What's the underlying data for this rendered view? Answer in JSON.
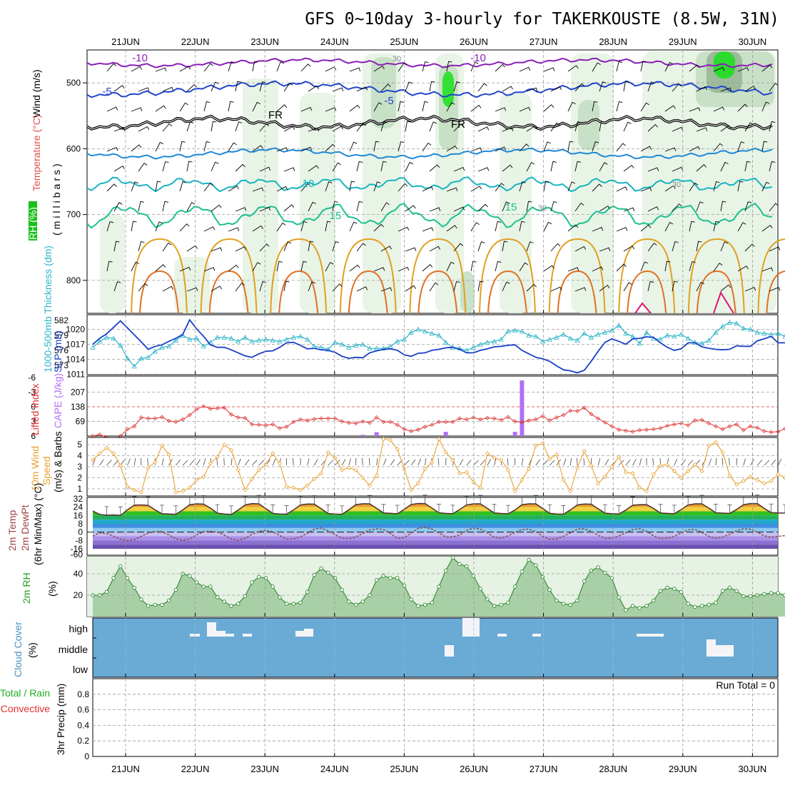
{
  "title": "GFS 0~10day 3-hourly for TAKERKOUSTE (8.5W, 31N)",
  "days": [
    "21JUN",
    "22JUN",
    "23JUN",
    "24JUN",
    "25JUN",
    "26JUN",
    "27JUN",
    "28JUN",
    "29JUN",
    "30JUN"
  ],
  "run_total": "Run Total = 0",
  "colors": {
    "temp_m10": "#8a1fb8",
    "temp_m5": "#2244cc",
    "temp_0": "#000000",
    "temp_5": "#1e88d8",
    "temp_10": "#18b4c0",
    "temp_15": "#1cc090",
    "temp_20": "#e0a020",
    "temp_25": "#e07020",
    "temp_30": "#e01870",
    "rh_light": "#e4f2e2",
    "rh_mid": "#c2dcc0",
    "rh_dark": "#95b493",
    "rh_max": "#18e018",
    "slp": "#1a3ec8",
    "thickness": "#2cb4c8",
    "lifted": "#e03030",
    "cape": "#b070f0",
    "wind10": "#e8a030",
    "cloud": "#6aabd6"
  },
  "upper_panel": {
    "ylabel_wind": "Wind (m/s)",
    "ylabel_temp": "Temperature (°C)",
    "ylabel_rh": "RH (%)",
    "ylabel_axis": "(millibars)",
    "yticks": [
      "500",
      "600",
      "700",
      "800"
    ],
    "contour_labels": [
      "-10",
      "-10",
      "-5",
      "-5",
      "FR",
      "FR",
      "10",
      "15",
      "15",
      "30",
      "30",
      "30"
    ]
  },
  "slp_panel": {
    "ylabel_thick": "1000-500mb Thickness (dm)",
    "ylabel_slp": "SLP (mb)",
    "left_ticks": [
      "582",
      "579",
      "576",
      "573"
    ],
    "right_ticks": [
      "1020",
      "1017",
      "1014",
      "1011"
    ]
  },
  "li_panel": {
    "ylabel_li": "Lifted Index",
    "ylabel_cape": "CAPE (J/kg)",
    "left_ticks": [
      "-6",
      "-3",
      "0",
      "3",
      "6"
    ],
    "right_ticks": [
      "207",
      "138",
      "69"
    ]
  },
  "wind_panel": {
    "ylabel_10m": "10m Wind",
    "ylabel_speed": "Speed",
    "ylabel_units": "(m/s) & Barbs",
    "yticks": [
      "5",
      "4",
      "3",
      "2",
      "1"
    ]
  },
  "temp_panel": {
    "ylabel_1": "2m Temp",
    "ylabel_2": "2m DewPt",
    "ylabel_3": "(6hr Min/Max) (°C)",
    "yticks": [
      "32",
      "24",
      "16",
      "8",
      "0",
      "-8",
      "-16",
      "-60"
    ]
  },
  "rh_panel": {
    "ylabel": "2m RH",
    "ylabel_units": "(%)",
    "yticks": [
      "40",
      "20"
    ]
  },
  "cloud_panel": {
    "ylabel": "Cloud Cover",
    "ylabel_units": "(%)",
    "levels": [
      "high",
      "middle",
      "low"
    ]
  },
  "precip_panel": {
    "ylabel_1": "Total / Rain",
    "ylabel_2": "Convective",
    "ylabel_3": "3hr Precip (mm)",
    "yticks": [
      "0.8",
      "0.6",
      "0.4",
      "0.2",
      "0"
    ]
  },
  "chart_data": [
    {
      "type": "line",
      "panel": "upper-air cross section",
      "title": "Temperature isotherms (°C)",
      "ylabel": "millibars",
      "ylim": [
        850,
        450
      ],
      "x": "3-hourly, 20JUN 15Z to 30JUN 12Z",
      "series": [
        {
          "name": "-10",
          "values": [
            470,
            462
          ]
        },
        {
          "name": "-5",
          "values": [
            500,
            520
          ]
        },
        {
          "name": "FR",
          "values": [
            560,
            568
          ]
        },
        {
          "name": "10",
          "values": [
            650,
            650
          ]
        },
        {
          "name": "15",
          "values": [
            700,
            700
          ]
        }
      ]
    },
    {
      "type": "line",
      "panel": "SLP and thickness",
      "ylabel": "SLP (mb)",
      "ylim": [
        1010,
        1022
      ],
      "series": [
        {
          "name": "SLP (mb)",
          "values": [
            1017.0,
            1018.2,
            1019.1,
            1020.4,
            1021.7,
            1020.3,
            1018.9,
            1017.5,
            1016.0,
            1016.6,
            1016.9,
            1017.6,
            1018.2,
            1019.0,
            1021.9,
            1020.1,
            1018.6,
            1016.9,
            1016.4,
            1016.4,
            1015.9,
            1015.3,
            1014.7,
            1014.4,
            1015.1,
            1015.6,
            1015.7,
            1016.4,
            1017.3,
            1017.4,
            1016.8,
            1016.1,
            1016.2,
            1015.9,
            1015.8,
            1015.4,
            1014.6,
            1014.2,
            1014.4,
            1014.3,
            1015.3,
            1015.7,
            1016.0,
            1016.1,
            1015.8,
            1014.9,
            1014.6,
            1015.2,
            1015.3,
            1015.8,
            1016.0,
            1016.3,
            1016.4,
            1016.0,
            1015.3,
            1015.3,
            1015.8,
            1016.1,
            1016.5,
            1016.6,
            1016.8,
            1016.9,
            1015.8,
            1015.1,
            1014.4,
            1014.1,
            1013.6,
            1012.7,
            1011.9,
            1011.7,
            1011.3,
            1011.8,
            1013.6,
            1015.6,
            1017.4,
            1018.1,
            1017.6,
            1017.0,
            1018.1,
            1018.2,
            1018.5,
            1018.4,
            1017.3,
            1016.4,
            1015.8,
            1016.1,
            1017.3,
            1017.3,
            1016.5,
            1016.2,
            1016.0,
            1015.9,
            1016.0,
            1016.7,
            1016.6,
            1016.6,
            1017.7,
            1018.1,
            1018.6,
            1017.3,
            1017.3
          ]
        },
        {
          "name": "1000-500mb Thickness (dm)",
          "values": [
            576.6,
            577.8,
            578.6,
            578.4,
            577.0,
            574.4,
            572.8,
            574.4,
            574.6,
            575.8,
            576.6,
            576.8,
            578.0,
            579.0,
            578.2,
            578.4,
            576.8,
            577.6,
            578.6,
            578.6,
            578.4,
            577.8,
            578.6,
            577.8,
            578.0,
            578.2,
            578.0,
            577.8,
            578.2,
            578.6,
            578.8,
            578.2,
            576.8,
            576.6,
            576.2,
            577.6,
            577.2,
            576.6,
            577.0,
            577.2,
            576.4,
            576.4,
            576.4,
            576.8,
            577.8,
            578.2,
            579.6,
            580.2,
            579.8,
            579.4,
            579.0,
            577.6,
            576.6,
            576.4,
            576.0,
            576.6,
            577.2,
            577.6,
            577.8,
            578.2,
            579.8,
            580.0,
            579.8,
            579.0,
            578.8,
            577.8,
            578.2,
            578.6,
            579.2,
            578.4,
            578.0,
            579.4,
            578.6,
            579.2,
            579.6,
            580.0,
            581.0,
            579.4,
            578.8,
            577.4,
            579.6,
            578.4,
            578.2,
            579.0,
            578.8,
            579.2,
            578.4,
            577.6,
            577.4,
            578.0,
            579.6,
            580.8,
            581.6,
            581.4,
            580.4,
            580.2,
            579.6,
            579.4,
            579.2,
            579.4,
            578.8
          ]
        }
      ]
    },
    {
      "type": "bar",
      "panel": "Lifted index and CAPE",
      "ylabel": "CAPE (J/kg)",
      "ylim": [
        0,
        276
      ],
      "series": [
        {
          "name": "Lifted Index",
          "values": [
            6.0,
            5.7,
            6.3,
            6.8,
            6.0,
            4.6,
            4.0,
            2.2,
            2.4,
            2.4,
            2.1,
            2.9,
            3.1,
            2.6,
            1.7,
            0.5,
            -0.1,
            0.4,
            0.3,
            0.2,
            1.6,
            2.2,
            2.3,
            3.6,
            3.7,
            3.8,
            3.6,
            4.4,
            4.1,
            3.1,
            2.6,
            2.8,
            2.5,
            2.4,
            2.4,
            2.4,
            3.0,
            3.3,
            3.4,
            3.0,
            3.3,
            2.2,
            3.1,
            3.1,
            3.7,
            4.6,
            5.0,
            4.7,
            4.1,
            3.7,
            3.1,
            3.1,
            3.1,
            2.4,
            2.6,
            2.2,
            2.6,
            2.3,
            2.4,
            2.7,
            2.1,
            3.0,
            3.2,
            2.8,
            2.6,
            1.9,
            2.8,
            2.2,
            1.7,
            0.8,
            0.9,
            0.2,
            1.5,
            2.4,
            3.2,
            4.0,
            4.7,
            4.9,
            5.1,
            4.8,
            4.7,
            4.6,
            4.4,
            3.9,
            3.6,
            3.4,
            3.8,
            2.8,
            2.7,
            3.4,
            4.0,
            4.6,
            4.0,
            3.6,
            4.8,
            4.0,
            4.3,
            5.0,
            5.2,
            5.1,
            4.5
          ]
        },
        {
          "name": "CAPE (J/kg)",
          "values": [
            0,
            0,
            0,
            0,
            0,
            0,
            0,
            0,
            0,
            0,
            0,
            0,
            0,
            0,
            0,
            0,
            0,
            0,
            0,
            0,
            0,
            0,
            0,
            0,
            0,
            0,
            0,
            0,
            0,
            0,
            0,
            0,
            0,
            0,
            0,
            0,
            0,
            0,
            0,
            6,
            0,
            18,
            0,
            0,
            0,
            0,
            0,
            0,
            0,
            0,
            0,
            20,
            0,
            0,
            0,
            0,
            0,
            0,
            0,
            0,
            0,
            20,
            262,
            0,
            0,
            0,
            0,
            0,
            0,
            0,
            0,
            0,
            0,
            0,
            0,
            0,
            0,
            0,
            0,
            0,
            0,
            0,
            0,
            0,
            0,
            0,
            0,
            0,
            0,
            0,
            0,
            0,
            0,
            0,
            0,
            0,
            0,
            0,
            0,
            0,
            0
          ]
        }
      ]
    },
    {
      "type": "line",
      "panel": "10m wind speed",
      "ylabel": "m/s",
      "ylim": [
        0.5,
        5.5
      ],
      "series": [
        {
          "name": "10m Wind Speed",
          "values": [
            3.6,
            4.2,
            4.7,
            4.2,
            3.1,
            1.2,
            0.9,
            0.7,
            2.9,
            3.4,
            4.9,
            4.1,
            0.7,
            0.8,
            1.1,
            1.8,
            2.1,
            3.3,
            3.9,
            5.0,
            4.5,
            2.7,
            0.9,
            1.9,
            2.7,
            3.2,
            4.2,
            3.3,
            1.2,
            1.1,
            0.9,
            1.3,
            1.9,
            2.4,
            4.3,
            3.8,
            2.7,
            2.9,
            2.7,
            2.0,
            1.3,
            2.2,
            5.5,
            5.4,
            4.6,
            2.8,
            0.9,
            1.5,
            2.8,
            3.4,
            5.5,
            4.3,
            3.6,
            2.4,
            2.5,
            1.6,
            1.1,
            4.2,
            3.8,
            3.6,
            2.7,
            0.8,
            1.8,
            2.8,
            4.9,
            5.1,
            3.7,
            4.1,
            1.8,
            0.8,
            2.9,
            4.4,
            3.1,
            1.5,
            2.1,
            3.0,
            3.9,
            2.5,
            2.4,
            1.1,
            0.8,
            2.3,
            3.1,
            3.2,
            2.6,
            2.0,
            2.6,
            3.2,
            2.6,
            4.9,
            5.2,
            4.3,
            2.2,
            1.4,
            1.7,
            2.1,
            1.8,
            1.5,
            1.7,
            2.3,
            2.0
          ]
        }
      ]
    },
    {
      "type": "area",
      "panel": "2m temperature and dewpoint",
      "ylabel": "°C",
      "ylim": [
        -16,
        32
      ],
      "series": [
        {
          "name": "2m Temp",
          "values": [
            20.3,
            17.0,
            16.3,
            16.5,
            16.1,
            21.4,
            25.9,
            26.2,
            25.7,
            21.4,
            17.7,
            17.4,
            17.1,
            21.3,
            26.3,
            27.1,
            26.9,
            23.1,
            18.2,
            17.4,
            17.0,
            21.2,
            26.1,
            27.4,
            27.2,
            22.6,
            18.0,
            17.4,
            17.2,
            21.4,
            26.1,
            27.0,
            26.9,
            22.5,
            17.8,
            17.3,
            17.1,
            21.5,
            26.4,
            27.3,
            27.1,
            22.9,
            18.4,
            18.1,
            17.6,
            21.9,
            26.5,
            27.5,
            27.4,
            23.1,
            18.6,
            18.0,
            17.7,
            21.7,
            26.1,
            27.1,
            27.2,
            22.8,
            18.4,
            17.9,
            17.5,
            21.3,
            26.3,
            27.2,
            27.1,
            22.7,
            18.1,
            17.4,
            17.2,
            21.3,
            26.2,
            27.0,
            26.8,
            22.5,
            18.2,
            17.7,
            17.4,
            21.2,
            25.8,
            26.4,
            26.4,
            22.8,
            18.4,
            18.0,
            17.7,
            21.7,
            26.1,
            27.1,
            27.2,
            23.0,
            18.6,
            18.3,
            18.0,
            21.7,
            26.3,
            27.4,
            27.4,
            22.8,
            18.8,
            18.4,
            18.3
          ]
        },
        {
          "name": "2m DewPt",
          "values": [
            -3.8,
            -0.8,
            -1.3,
            -3.9,
            -6.9,
            -8.2,
            -7.3,
            -3.9,
            -0.9,
            0.6,
            0.4,
            -2.6,
            -6.4,
            -7.9,
            -6.6,
            -2.6,
            0.3,
            0.9,
            0.1,
            -2.9,
            -6.7,
            -7.8,
            -5.9,
            -2.0,
            0.7,
            1.6,
            0.3,
            -3.2,
            -6.8,
            -6.5,
            -4.5,
            -1.2,
            3.0,
            3.8,
            1.2,
            -2.4,
            -5.8,
            -6.2,
            -4.5,
            -1.4,
            2.1,
            3.1,
            2.5,
            -1.3,
            -6.0,
            -5.4,
            -1.0,
            3.6,
            4.6,
            2.9,
            -0.8,
            -4.6,
            -4.6,
            -2.9,
            1.7,
            3.8,
            2.9,
            -0.5,
            -5.0,
            -5.6,
            -3.6,
            -0.3,
            2.5,
            2.9,
            0.5,
            -3.9,
            -6.9,
            -6.5,
            -3.9,
            -0.7,
            2.9,
            3.1,
            0.9,
            -3.0,
            -6.1,
            -5.8,
            -3.7,
            -0.5,
            2.6,
            3.2,
            0.8,
            -3.6,
            -6.2,
            -5.9,
            -4.0,
            -1.0,
            2.2,
            2.6,
            -0.3,
            -4.0,
            -5.9,
            -4.7,
            -2.2,
            1.2,
            3.3,
            2.8,
            -0.1,
            -3.6,
            -4.9,
            -4.1,
            -3.3
          ]
        }
      ]
    },
    {
      "type": "area",
      "panel": "2m relative humidity",
      "ylabel": "%",
      "ylim": [
        0,
        56
      ],
      "series": [
        {
          "name": "2m RH",
          "values": [
            20,
            20,
            23,
            36,
            47,
            36,
            27,
            16,
            10,
            11,
            11,
            15,
            25,
            40,
            38,
            32,
            28,
            28,
            18,
            14,
            10,
            12,
            19,
            32,
            37,
            36,
            28,
            18,
            12,
            12,
            13,
            23,
            39,
            45,
            41,
            36,
            25,
            14,
            11,
            14,
            20,
            34,
            38,
            36,
            36,
            29,
            16,
            10,
            11,
            13,
            28,
            43,
            55,
            49,
            47,
            38,
            26,
            16,
            10,
            11,
            13,
            28,
            42,
            53,
            48,
            37,
            25,
            15,
            12,
            11,
            15,
            33,
            43,
            46,
            41,
            36,
            18,
            6,
            10,
            8,
            10,
            15,
            24,
            27,
            26,
            23,
            12,
            9,
            10,
            11,
            13,
            24,
            27,
            24,
            19,
            19,
            20,
            21,
            22,
            22,
            20
          ]
        }
      ]
    },
    {
      "type": "heatmap",
      "panel": "cloud cover",
      "ylabel": "%",
      "levels": [
        "high",
        "middle",
        "low"
      ]
    },
    {
      "type": "bar",
      "panel": "3hr precipitation",
      "ylabel": "mm",
      "ylim": [
        0,
        1
      ],
      "series": [
        {
          "name": "Total / Rain",
          "values": [
            0
          ]
        },
        {
          "name": "Convective",
          "values": [
            0
          ]
        }
      ]
    }
  ]
}
